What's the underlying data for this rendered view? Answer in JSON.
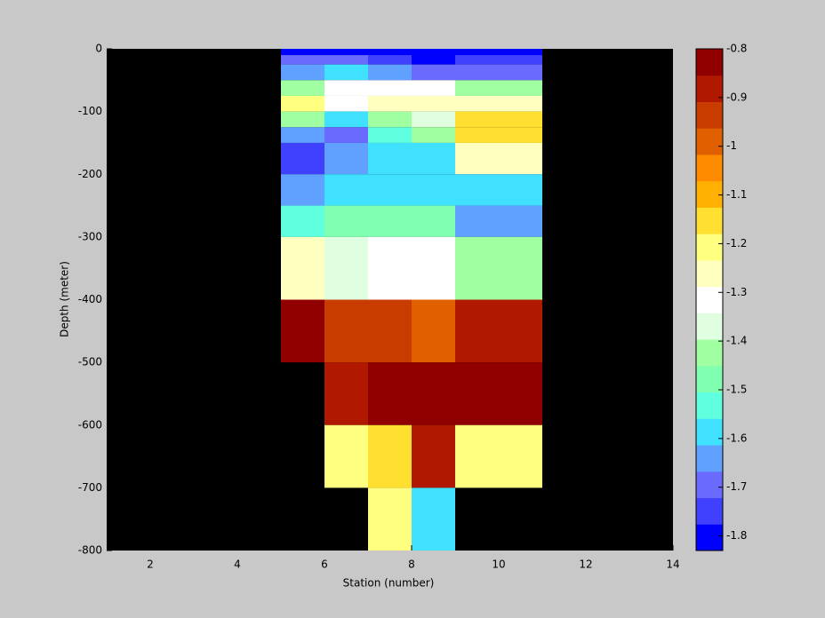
{
  "chart_data": {
    "type": "heatmap",
    "x_label": "Station (number)",
    "y_label": "Depth (meter)",
    "x_edges": [
      5,
      6,
      7,
      8,
      9,
      11
    ],
    "y_edges": [
      0,
      -10,
      -25,
      -50,
      -75,
      -100,
      -125,
      -150,
      -200,
      -250,
      -300,
      -400,
      -500,
      -600,
      -700,
      -800
    ],
    "values": [
      [
        -1.8,
        -1.8,
        -1.8,
        -1.8,
        -1.8
      ],
      [
        -1.72,
        -1.72,
        -1.75,
        -1.78,
        -1.75
      ],
      [
        -1.65,
        -1.58,
        -1.65,
        -1.72,
        -1.72
      ],
      [
        -1.45,
        -1.32,
        -1.3,
        -1.3,
        -1.45
      ],
      [
        -1.2,
        -1.3,
        -1.28,
        -1.25,
        -1.27
      ],
      [
        -1.45,
        -1.6,
        -1.45,
        -1.35,
        -1.15
      ],
      [
        -1.65,
        -1.72,
        -1.55,
        -1.45,
        -1.15
      ],
      [
        -1.77,
        -1.65,
        -1.57,
        -1.57,
        -1.25
      ],
      [
        -1.65,
        -1.6,
        -1.58,
        -1.58,
        -1.58
      ],
      [
        -1.52,
        -1.5,
        -1.5,
        -1.48,
        -1.65
      ],
      [
        -1.25,
        -1.35,
        -1.3,
        -1.33,
        -1.45
      ],
      [
        -0.82,
        -0.92,
        -0.92,
        -0.97,
        -0.87
      ],
      [
        null,
        -0.87,
        -0.85,
        -0.8,
        -0.82
      ],
      [
        null,
        -1.18,
        -1.13,
        -0.9,
        -1.18
      ],
      [
        null,
        null,
        -1.18,
        -1.6,
        null
      ]
    ],
    "xlim": [
      1,
      14
    ],
    "xticks": [
      2,
      4,
      6,
      8,
      10,
      12,
      14
    ],
    "ylim": [
      -800,
      0
    ],
    "yticks": [
      0,
      -100,
      -200,
      -300,
      -400,
      -500,
      -600,
      -700,
      -800
    ],
    "missing_color": "#000000",
    "colormap": [
      "#0000ff",
      "#4040ff",
      "#6a6aff",
      "#60a0ff",
      "#40e0ff",
      "#60ffe0",
      "#80ffb0",
      "#a0ffa0",
      "#e0ffe0",
      "#ffffff",
      "#ffffc0",
      "#ffff80",
      "#ffe030",
      "#ffb000",
      "#ff8c00",
      "#e06000",
      "#c83c00",
      "#b01800",
      "#900000"
    ],
    "colorbar": {
      "clim": [
        -1.83,
        -0.8
      ],
      "ticks": [
        -0.8,
        -0.9,
        -1,
        -1.1,
        -1.2,
        -1.3,
        -1.4,
        -1.5,
        -1.6,
        -1.7,
        -1.8
      ]
    }
  }
}
